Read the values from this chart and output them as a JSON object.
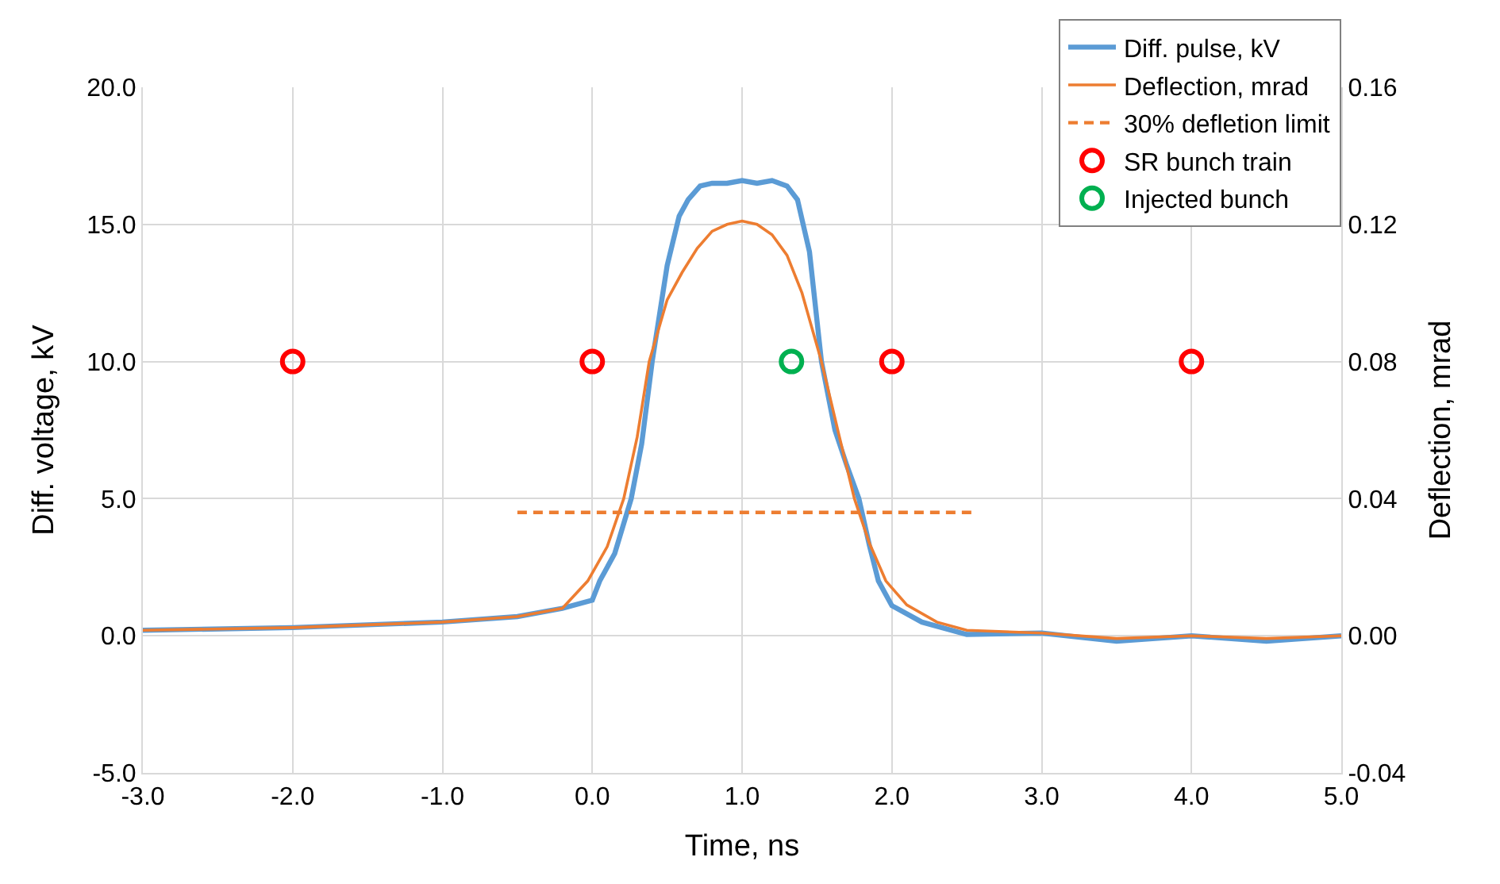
{
  "chart_data": {
    "type": "line",
    "xlabel": "Time, ns",
    "ylabel": "Diff. voltage, kV",
    "y2label": "Deflection, mrad",
    "xlim": [
      -3,
      5
    ],
    "ylim": [
      -5,
      20
    ],
    "y2lim": [
      -0.04,
      0.16
    ],
    "xticks": [
      {
        "value": -3,
        "label": "-3.0"
      },
      {
        "value": -2,
        "label": "-2.0"
      },
      {
        "value": -1,
        "label": "-1.0"
      },
      {
        "value": 0,
        "label": "0.0"
      },
      {
        "value": 1,
        "label": "1.0"
      },
      {
        "value": 2,
        "label": "2.0"
      },
      {
        "value": 3,
        "label": "3.0"
      },
      {
        "value": 4,
        "label": "4.0"
      },
      {
        "value": 5,
        "label": "5.0"
      }
    ],
    "yticks": [
      {
        "value": -5,
        "label": "-5.0"
      },
      {
        "value": 0,
        "label": "0.0"
      },
      {
        "value": 5,
        "label": "5.0"
      },
      {
        "value": 10,
        "label": "10.0"
      },
      {
        "value": 15,
        "label": "15.0"
      },
      {
        "value": 20,
        "label": "20.0"
      }
    ],
    "y2ticks": [
      -0.04,
      {
        "value": 0,
        "label": "0.00"
      },
      {
        "value": 0.04,
        "label": "0.04"
      },
      {
        "value": 0.08,
        "label": "0.08"
      },
      {
        "value": 0.12,
        "label": "0.12"
      },
      {
        "value": 0.16,
        "label": "0.16"
      }
    ],
    "grid": true,
    "legend": "top right",
    "marker": "none",
    "line_style": "solid",
    "series": [
      {
        "name": "Diff. pulse, kV",
        "color": "#5b9bd5",
        "x": [
          -3,
          -2,
          -1,
          -0.5,
          -0.2,
          0,
          0.05,
          0.15,
          0.26,
          0.33,
          0.4,
          0.5,
          0.58,
          0.64,
          0.72,
          0.8,
          0.9,
          1.0,
          1.1,
          1.2,
          1.3,
          1.37,
          1.45,
          1.53,
          1.62,
          1.7,
          1.78,
          1.85,
          1.91,
          2.0,
          2.2,
          2.5,
          3,
          3.5,
          4,
          4.5,
          5
        ],
        "values": [
          0.2,
          0.3,
          0.5,
          0.7,
          1.0,
          1.3,
          2.0,
          3.0,
          5.0,
          7.0,
          10.0,
          13.5,
          15.3,
          15.9,
          16.4,
          16.5,
          16.5,
          16.6,
          16.5,
          16.6,
          16.4,
          15.9,
          14.0,
          10.0,
          7.5,
          6.2,
          5.0,
          3.3,
          2.0,
          1.1,
          0.5,
          0.05,
          0.1,
          -0.2,
          0.0,
          -0.2,
          0.0
        ]
      },
      {
        "name": "Deflection, mrad",
        "color": "#ed7d31",
        "axis": "y2",
        "x": [
          -3,
          -2,
          -1,
          -0.5,
          -0.2,
          -0.03,
          0.1,
          0.21,
          0.3,
          0.38,
          0.5,
          0.6,
          0.7,
          0.8,
          0.9,
          1.0,
          1.1,
          1.2,
          1.3,
          1.4,
          1.53,
          1.65,
          1.75,
          1.85,
          1.96,
          2.1,
          2.3,
          2.5,
          3,
          3.5,
          4,
          4.5,
          5
        ],
        "values": [
          0.0016,
          0.0024,
          0.004,
          0.0056,
          0.008,
          0.016,
          0.026,
          0.04,
          0.058,
          0.08,
          0.098,
          0.106,
          0.113,
          0.118,
          0.12,
          0.121,
          0.12,
          0.117,
          0.111,
          0.1,
          0.08,
          0.058,
          0.04,
          0.027,
          0.016,
          0.009,
          0.004,
          0.0016,
          0.0008,
          -0.0008,
          0,
          -0.0008,
          0
        ]
      },
      {
        "name": "30% defletion limit",
        "color": "#ed7d31",
        "axis": "y2",
        "line_style": "dashed",
        "x": [
          -0.5,
          2.55
        ],
        "values": [
          0.036,
          0.036
        ]
      },
      {
        "name": "SR bunch train",
        "color": "#ff0000",
        "type": "scatter",
        "marker": "circle",
        "x": [
          -2,
          0,
          2,
          4
        ],
        "values": [
          10,
          10,
          10,
          10
        ]
      },
      {
        "name": "Injected bunch",
        "color": "#00b050",
        "type": "scatter",
        "marker": "circle",
        "x": [
          1.33
        ],
        "values": [
          10
        ]
      }
    ]
  }
}
